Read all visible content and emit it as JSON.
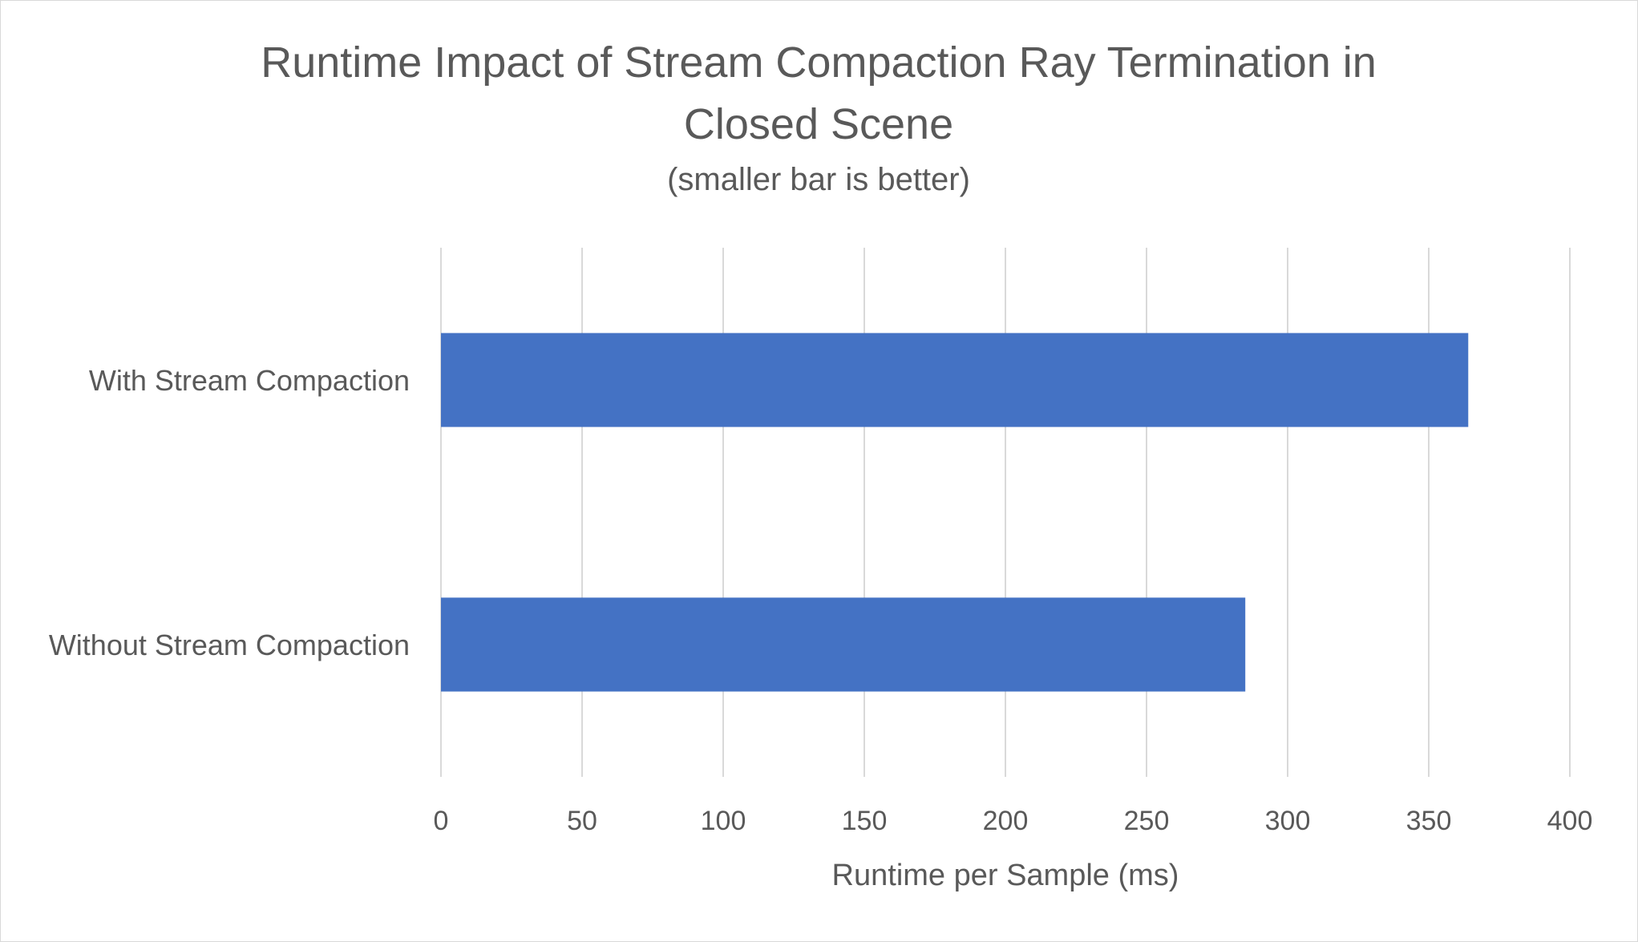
{
  "chart_data": {
    "type": "bar",
    "orientation": "horizontal",
    "title_lines": [
      "Runtime Impact of Stream Compaction Ray Termination in",
      "Closed Scene"
    ],
    "subtitle": "(smaller bar is better)",
    "categories": [
      "With Stream Compaction",
      "Without Stream Compaction"
    ],
    "values": [
      364,
      285
    ],
    "xlabel": "Runtime per Sample (ms)",
    "ylabel": "",
    "xlim": [
      0,
      400
    ],
    "xticks": [
      "0",
      "50",
      "100",
      "150",
      "200",
      "250",
      "300",
      "350",
      "400"
    ],
    "grid": true,
    "legend": "none",
    "bar_color": "#4472C4",
    "grid_color": "#d9d9d9",
    "text_color": "#595959"
  }
}
